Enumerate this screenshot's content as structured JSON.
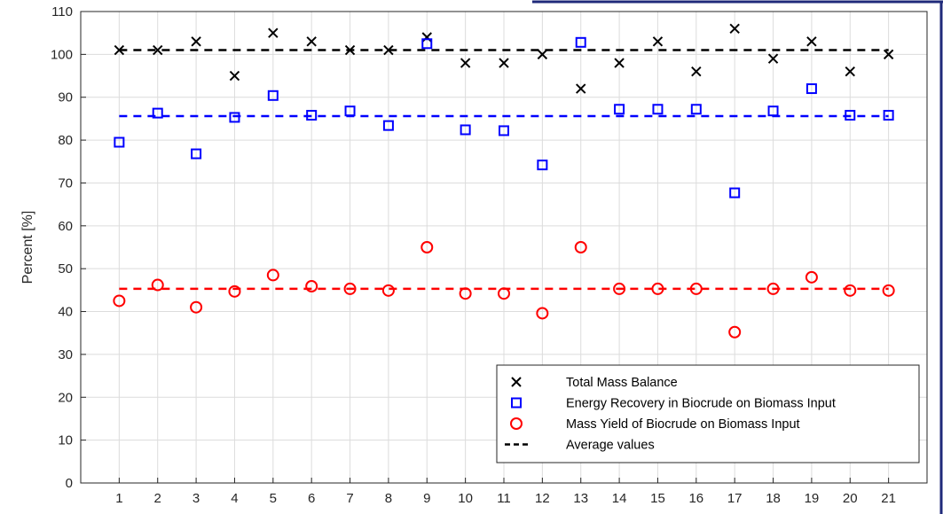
{
  "chart_data": {
    "type": "scatter",
    "title": "",
    "xlabel": "",
    "ylabel": "Percent [%]",
    "x": [
      1,
      2,
      3,
      4,
      5,
      6,
      7,
      8,
      9,
      10,
      11,
      12,
      13,
      14,
      15,
      16,
      17,
      18,
      19,
      20,
      21
    ],
    "xticks": [
      "1",
      "2",
      "3",
      "4",
      "5",
      "6",
      "7",
      "8",
      "9",
      "10",
      "11",
      "12",
      "13",
      "14",
      "15",
      "16",
      "17",
      "18",
      "19",
      "20",
      "21"
    ],
    "xlim": [
      0,
      22
    ],
    "ylim": [
      0,
      110
    ],
    "yticks": [
      0,
      10,
      20,
      30,
      40,
      50,
      60,
      70,
      80,
      90,
      100,
      110
    ],
    "grid": true,
    "legend_position": "bottom-right",
    "series": [
      {
        "name": "Total Mass Balance",
        "marker": "x",
        "color": "#000000",
        "values": [
          101,
          101,
          103,
          95,
          105,
          103,
          101,
          101,
          104,
          98,
          98,
          100,
          92,
          98,
          103,
          96,
          106,
          99,
          103,
          96,
          100
        ]
      },
      {
        "name": "Energy Recovery in Biocrude on Biomass Input",
        "marker": "square",
        "color": "#0000ff",
        "values": [
          79.5,
          86.3,
          76.8,
          85.3,
          90.4,
          85.8,
          86.8,
          83.4,
          102.5,
          82.4,
          82.2,
          74.2,
          102.8,
          87.2,
          87.2,
          87.2,
          67.7,
          86.8,
          92.0,
          85.8,
          85.8
        ]
      },
      {
        "name": "Mass Yield of Biocrude on Biomass Input",
        "marker": "circle",
        "color": "#ff0000",
        "values": [
          42.5,
          46.2,
          41.0,
          44.7,
          48.5,
          45.9,
          45.3,
          44.9,
          55.0,
          44.2,
          44.2,
          39.6,
          55.0,
          45.3,
          45.3,
          45.3,
          35.2,
          45.3,
          48.0,
          44.9,
          44.9
        ]
      }
    ],
    "average_lines": [
      {
        "series": "Total Mass Balance",
        "value": 101,
        "color": "#000000"
      },
      {
        "series": "Energy Recovery in Biocrude on Biomass Input",
        "value": 85.6,
        "color": "#0000ff"
      },
      {
        "series": "Mass Yield of Biocrude on Biomass Input",
        "value": 45.3,
        "color": "#ff0000"
      }
    ],
    "average_legend_label": "Average values"
  }
}
